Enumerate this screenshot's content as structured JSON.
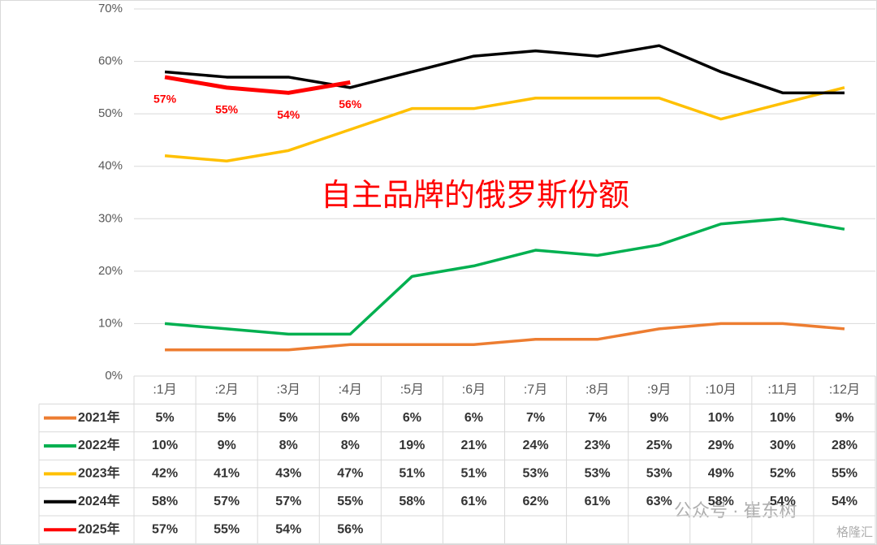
{
  "chart_data": {
    "type": "line",
    "annotation": "自主品牌的俄罗斯份额",
    "watermark": [
      "公众号 · 崔东树",
      "格隆汇"
    ],
    "categories": [
      ":1月",
      ":2月",
      ":3月",
      ":4月",
      ":5月",
      ":6月",
      ":7月",
      ":8月",
      ":9月",
      ":10月",
      ":11月",
      ":12月"
    ],
    "series": [
      {
        "name": "2021年",
        "color": "#ED7D31",
        "values": [
          5,
          5,
          5,
          6,
          6,
          6,
          7,
          7,
          9,
          10,
          10,
          9
        ],
        "value_labels": [
          "5%",
          "5%",
          "5%",
          "6%",
          "6%",
          "6%",
          "7%",
          "7%",
          "9%",
          "10%",
          "10%",
          "9%"
        ]
      },
      {
        "name": "2022年",
        "color": "#00B050",
        "values": [
          10,
          9,
          8,
          8,
          19,
          21,
          24,
          23,
          25,
          29,
          30,
          28
        ],
        "value_labels": [
          "10%",
          "9%",
          "8%",
          "8%",
          "19%",
          "21%",
          "24%",
          "23%",
          "25%",
          "29%",
          "30%",
          "28%"
        ]
      },
      {
        "name": "2023年",
        "color": "#FFC000",
        "values": [
          42,
          41,
          43,
          47,
          51,
          51,
          53,
          53,
          53,
          49,
          52,
          55
        ],
        "value_labels": [
          "42%",
          "41%",
          "43%",
          "47%",
          "51%",
          "51%",
          "53%",
          "53%",
          "53%",
          "49%",
          "52%",
          "55%"
        ]
      },
      {
        "name": "2024年",
        "color": "#000000",
        "values": [
          58,
          57,
          57,
          55,
          58,
          61,
          62,
          61,
          63,
          58,
          54,
          54
        ],
        "value_labels": [
          "58%",
          "57%",
          "57%",
          "55%",
          "58%",
          "61%",
          "62%",
          "61%",
          "63%",
          "58%",
          "54%",
          "54%"
        ]
      },
      {
        "name": "2025年",
        "color": "#FF0000",
        "values": [
          57,
          55,
          54,
          56,
          null,
          null,
          null,
          null,
          null,
          null,
          null,
          null
        ],
        "value_labels": [
          "57%",
          "55%",
          "54%",
          "56%",
          null,
          null,
          null,
          null,
          null,
          null,
          null,
          null
        ]
      }
    ],
    "ylim": [
      0,
      70
    ],
    "yticks": [
      {
        "value": 0,
        "label": "0%"
      },
      {
        "value": 10,
        "label": "10%"
      },
      {
        "value": 20,
        "label": "20%"
      },
      {
        "value": 30,
        "label": "30%"
      },
      {
        "value": 40,
        "label": "40%"
      },
      {
        "value": 50,
        "label": "50%"
      },
      {
        "value": 60,
        "label": "60%"
      },
      {
        "value": 70,
        "label": "70%"
      }
    ],
    "grid": true
  }
}
